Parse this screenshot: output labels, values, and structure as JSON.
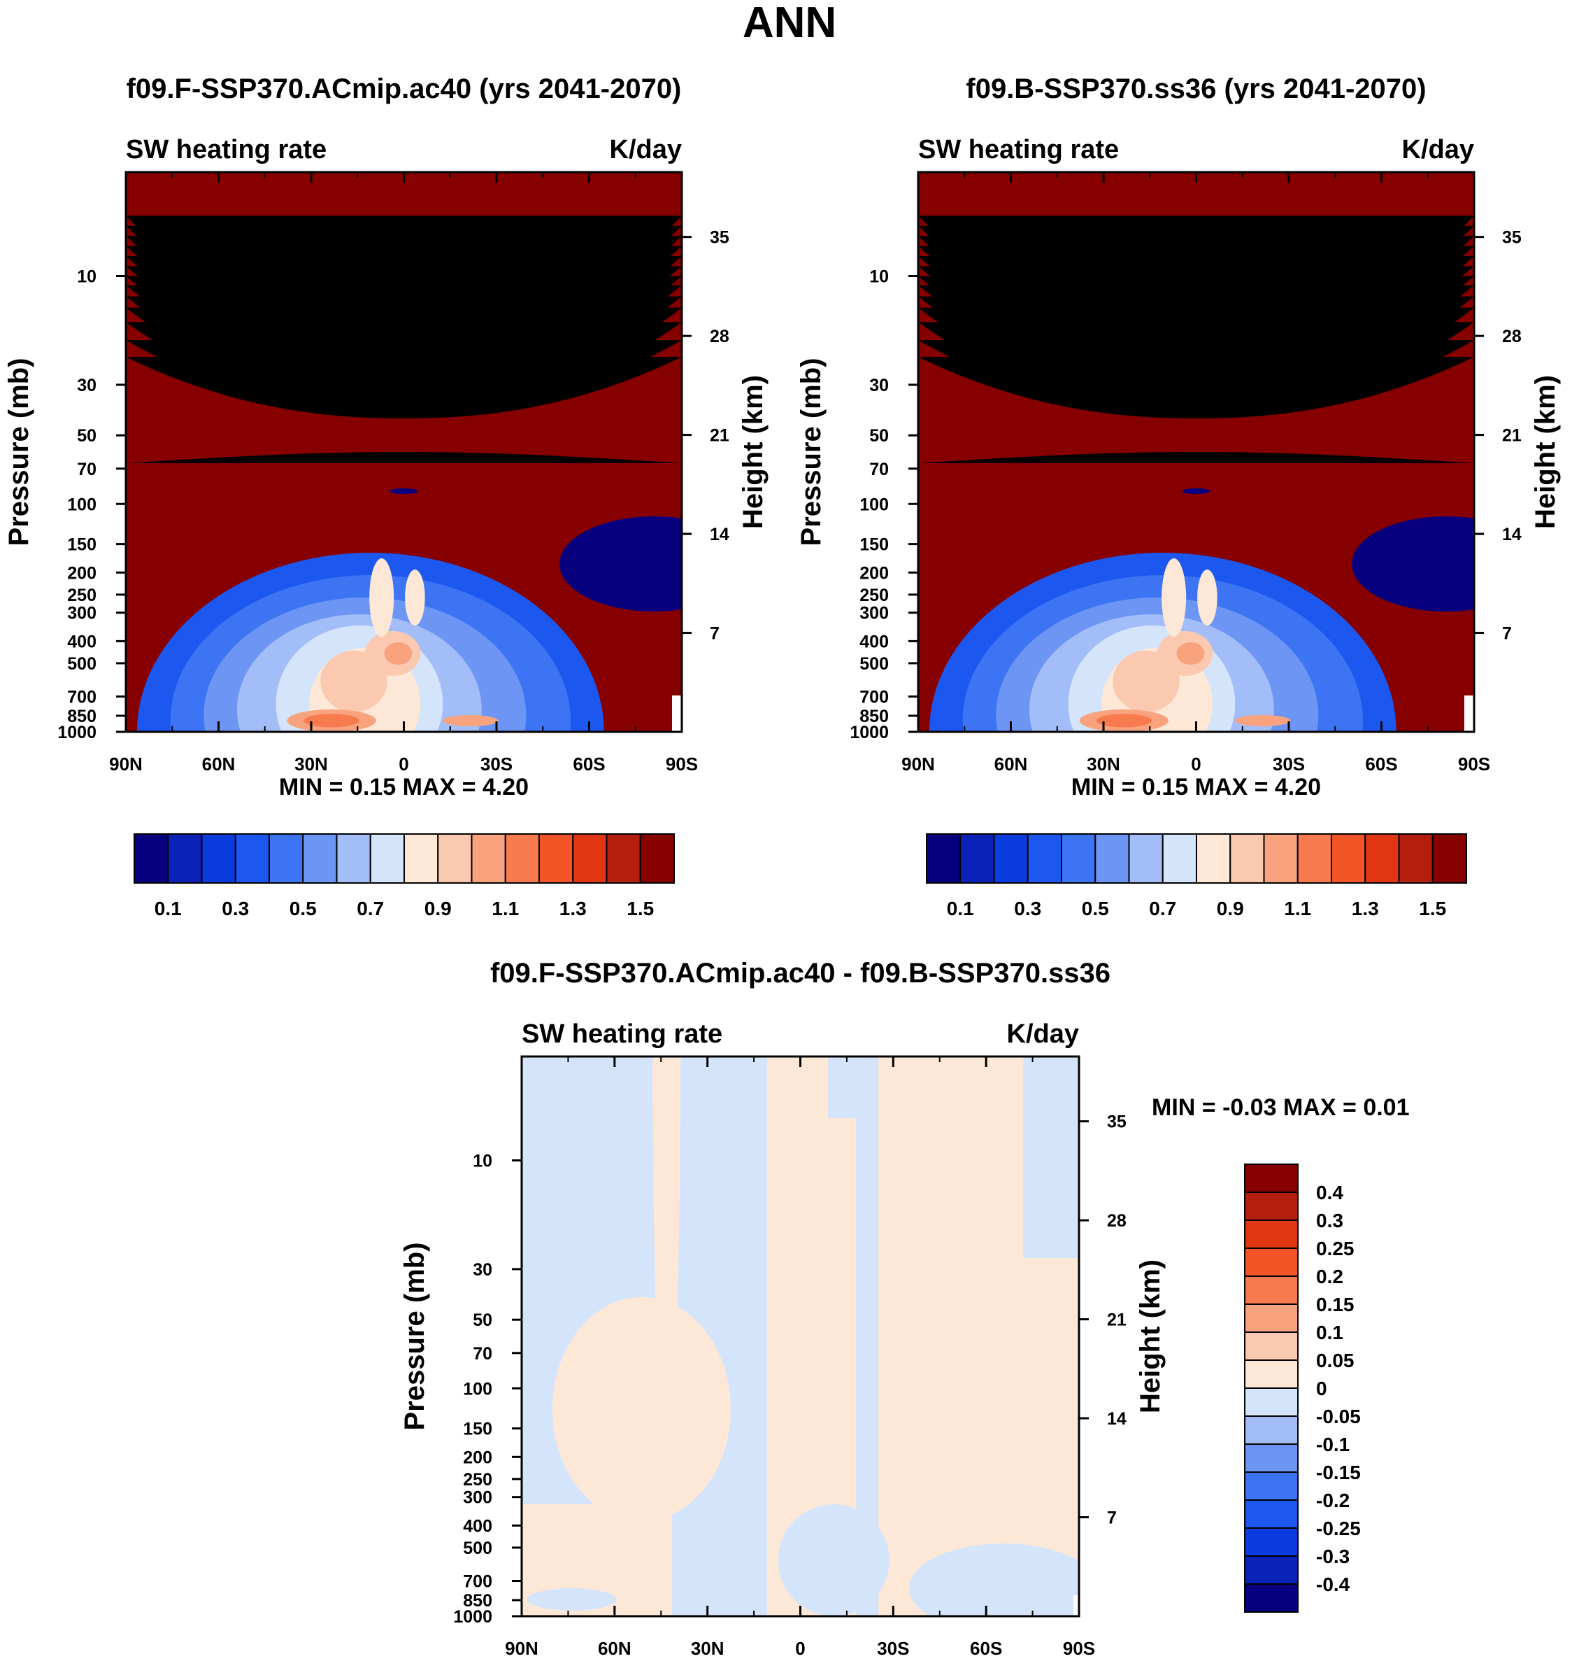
{
  "figure_title": "ANN",
  "chart_data": [
    {
      "type": "heatmap",
      "title": "f09.F-SSP370.ACmip.ac40 (yrs 2041-2070)",
      "left_label": "SW heating rate",
      "right_label": "K/day",
      "ylabel": "Pressure (mb)",
      "ylabel_right": "Height (km)",
      "x_ticks": [
        "90N",
        "60N",
        "30N",
        "0",
        "30S",
        "60S",
        "90S"
      ],
      "x_values": [
        90,
        60,
        30,
        0,
        -30,
        -60,
        -90
      ],
      "y_ticks": [
        "10",
        "30",
        "50",
        "70",
        "100",
        "150",
        "200",
        "250",
        "300",
        "400",
        "500",
        "700",
        "850",
        "1000"
      ],
      "y_values": [
        10,
        30,
        50,
        70,
        100,
        150,
        200,
        250,
        300,
        400,
        500,
        700,
        850,
        1000
      ],
      "height_ticks": [
        "35",
        "28",
        "21",
        "14",
        "7"
      ],
      "height_values": [
        35,
        28,
        21,
        14,
        7
      ],
      "ylim": [
        3.5,
        1000
      ],
      "min_max_text": "MIN =   0.15  MAX =   4.20",
      "min": 0.15,
      "max": 4.2,
      "levels": [
        0.1,
        0.2,
        0.3,
        0.4,
        0.5,
        0.6,
        0.7,
        0.8,
        0.9,
        1.0,
        1.1,
        1.2,
        1.3,
        1.4,
        1.5
      ],
      "colorbar_labels": [
        "0.1",
        "0.3",
        "0.5",
        "0.7",
        "0.9",
        "1.1",
        "1.3",
        "1.5"
      ]
    },
    {
      "type": "heatmap",
      "title": "f09.B-SSP370.ss36 (yrs 2041-2070)",
      "left_label": "SW heating rate",
      "right_label": "K/day",
      "ylabel": "Pressure (mb)",
      "ylabel_right": "Height (km)",
      "x_ticks": [
        "90N",
        "60N",
        "30N",
        "0",
        "30S",
        "60S",
        "90S"
      ],
      "x_values": [
        90,
        60,
        30,
        0,
        -30,
        -60,
        -90
      ],
      "y_ticks": [
        "10",
        "30",
        "50",
        "70",
        "100",
        "150",
        "200",
        "250",
        "300",
        "400",
        "500",
        "700",
        "850",
        "1000"
      ],
      "y_values": [
        10,
        30,
        50,
        70,
        100,
        150,
        200,
        250,
        300,
        400,
        500,
        700,
        850,
        1000
      ],
      "height_ticks": [
        "35",
        "28",
        "21",
        "14",
        "7"
      ],
      "height_values": [
        35,
        28,
        21,
        14,
        7
      ],
      "ylim": [
        3.5,
        1000
      ],
      "min_max_text": "MIN =   0.15  MAX =   4.20",
      "min": 0.15,
      "max": 4.2,
      "levels": [
        0.1,
        0.2,
        0.3,
        0.4,
        0.5,
        0.6,
        0.7,
        0.8,
        0.9,
        1.0,
        1.1,
        1.2,
        1.3,
        1.4,
        1.5
      ],
      "colorbar_labels": [
        "0.1",
        "0.3",
        "0.5",
        "0.7",
        "0.9",
        "1.1",
        "1.3",
        "1.5"
      ]
    },
    {
      "type": "heatmap",
      "title": "f09.F-SSP370.ACmip.ac40 - f09.B-SSP370.ss36",
      "left_label": "SW heating rate",
      "right_label": "K/day",
      "ylabel": "Pressure (mb)",
      "ylabel_right": "Height (km)",
      "x_ticks": [
        "90N",
        "60N",
        "30N",
        "0",
        "30S",
        "60S",
        "90S"
      ],
      "x_values": [
        90,
        60,
        30,
        0,
        -30,
        -60,
        -90
      ],
      "y_ticks": [
        "10",
        "30",
        "50",
        "70",
        "100",
        "150",
        "200",
        "250",
        "300",
        "400",
        "500",
        "700",
        "850",
        "1000"
      ],
      "y_values": [
        10,
        30,
        50,
        70,
        100,
        150,
        200,
        250,
        300,
        400,
        500,
        700,
        850,
        1000
      ],
      "height_ticks": [
        "35",
        "28",
        "21",
        "14",
        "7"
      ],
      "height_values": [
        35,
        28,
        21,
        14,
        7
      ],
      "ylim": [
        3.5,
        1000
      ],
      "min_max_text": "MIN =  -0.03  MAX =   0.01",
      "min": -0.03,
      "max": 0.01,
      "levels": [
        -0.4,
        -0.3,
        -0.25,
        -0.2,
        -0.15,
        -0.1,
        -0.05,
        0,
        0.05,
        0.1,
        0.15,
        0.2,
        0.25,
        0.3,
        0.4
      ],
      "colorbar_labels": [
        "0.4",
        "0.3",
        "0.25",
        "0.2",
        "0.15",
        "0.1",
        "0.05",
        "0",
        "-0.05",
        "-0.1",
        "-0.15",
        "-0.2",
        "-0.25",
        "-0.3",
        "-0.4"
      ]
    }
  ],
  "palette": [
    "#06007e",
    "#0a22b8",
    "#0b3ce0",
    "#1c58f0",
    "#3c74f4",
    "#6d95f4",
    "#a2bdf7",
    "#d4e5fb",
    "#fde8d7",
    "#fbc9b0",
    "#f9a27e",
    "#f77b4e",
    "#f45526",
    "#e03611",
    "#b31f0c",
    "#870000"
  ]
}
